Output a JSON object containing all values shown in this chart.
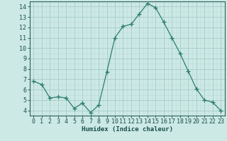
{
  "x": [
    0,
    1,
    2,
    3,
    4,
    5,
    6,
    7,
    8,
    9,
    10,
    11,
    12,
    13,
    14,
    15,
    16,
    17,
    18,
    19,
    20,
    21,
    22,
    23
  ],
  "y": [
    6.8,
    6.5,
    5.2,
    5.3,
    5.2,
    4.2,
    4.7,
    3.8,
    4.5,
    7.7,
    11.0,
    12.1,
    12.3,
    13.3,
    14.3,
    13.9,
    12.5,
    11.0,
    9.5,
    7.8,
    6.1,
    5.0,
    4.8,
    4.0
  ],
  "line_color": "#2d7d6e",
  "marker": "+",
  "marker_size": 4,
  "bg_color": "#cce9e5",
  "grid_major_color": "#aacfcb",
  "grid_minor_color": "#bddbd7",
  "xlabel": "Humidex (Indice chaleur)",
  "xlim": [
    -0.5,
    23.5
  ],
  "ylim": [
    3.5,
    14.5
  ],
  "yticks": [
    4,
    5,
    6,
    7,
    8,
    9,
    10,
    11,
    12,
    13,
    14
  ],
  "xticks": [
    0,
    1,
    2,
    3,
    4,
    5,
    6,
    7,
    8,
    9,
    10,
    11,
    12,
    13,
    14,
    15,
    16,
    17,
    18,
    19,
    20,
    21,
    22,
    23
  ],
  "tick_color": "#1a4f4a",
  "label_fontsize": 6.5,
  "tick_fontsize": 6.0,
  "axis_color": "#2d5f5a",
  "linewidth": 0.9
}
